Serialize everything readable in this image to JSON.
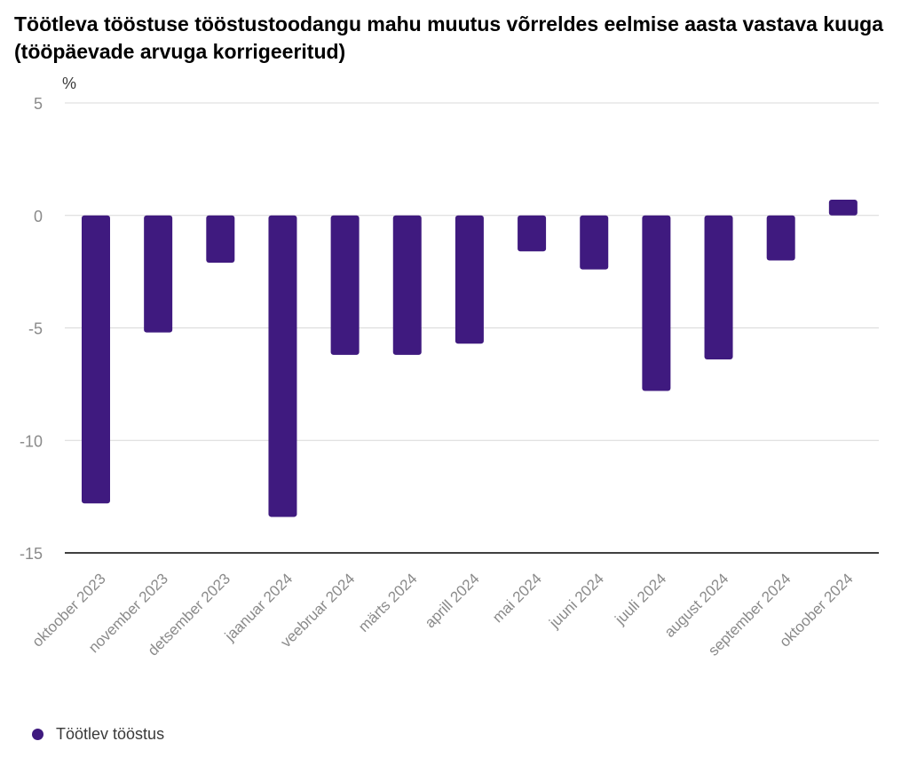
{
  "chart_data": {
    "type": "bar",
    "title": "Töötleva tööstuse tööstustoodangu mahu muutus võrreldes eelmise aasta vastava kuuga (tööpäevade arvuga korrigeeritud)",
    "ylabel": "%",
    "xlabel": "",
    "ylim": [
      -15,
      5
    ],
    "yticks": [
      5,
      0,
      -5,
      -10,
      -15
    ],
    "grid": true,
    "legend_position": "bottom-left",
    "categories": [
      "oktoober 2023",
      "november 2023",
      "detsember 2023",
      "jaanuar 2024",
      "veebruar 2024",
      "märts 2024",
      "aprill 2024",
      "mai 2024",
      "juuni 2024",
      "juuli 2024",
      "august 2024",
      "september 2024",
      "oktoober 2024"
    ],
    "series": [
      {
        "name": "Töötlev tööstus",
        "color": "#3f1a7f",
        "values": [
          -12.8,
          -5.2,
          -2.1,
          -13.4,
          -6.2,
          -6.2,
          -5.7,
          -1.6,
          -2.4,
          -7.8,
          -6.4,
          -2.0,
          0.7
        ]
      }
    ]
  },
  "colors": {
    "bar": "#3f1a7f",
    "grid": "#d9d9d9",
    "baseline": "#000000",
    "tick_label": "#8a8a8a"
  }
}
